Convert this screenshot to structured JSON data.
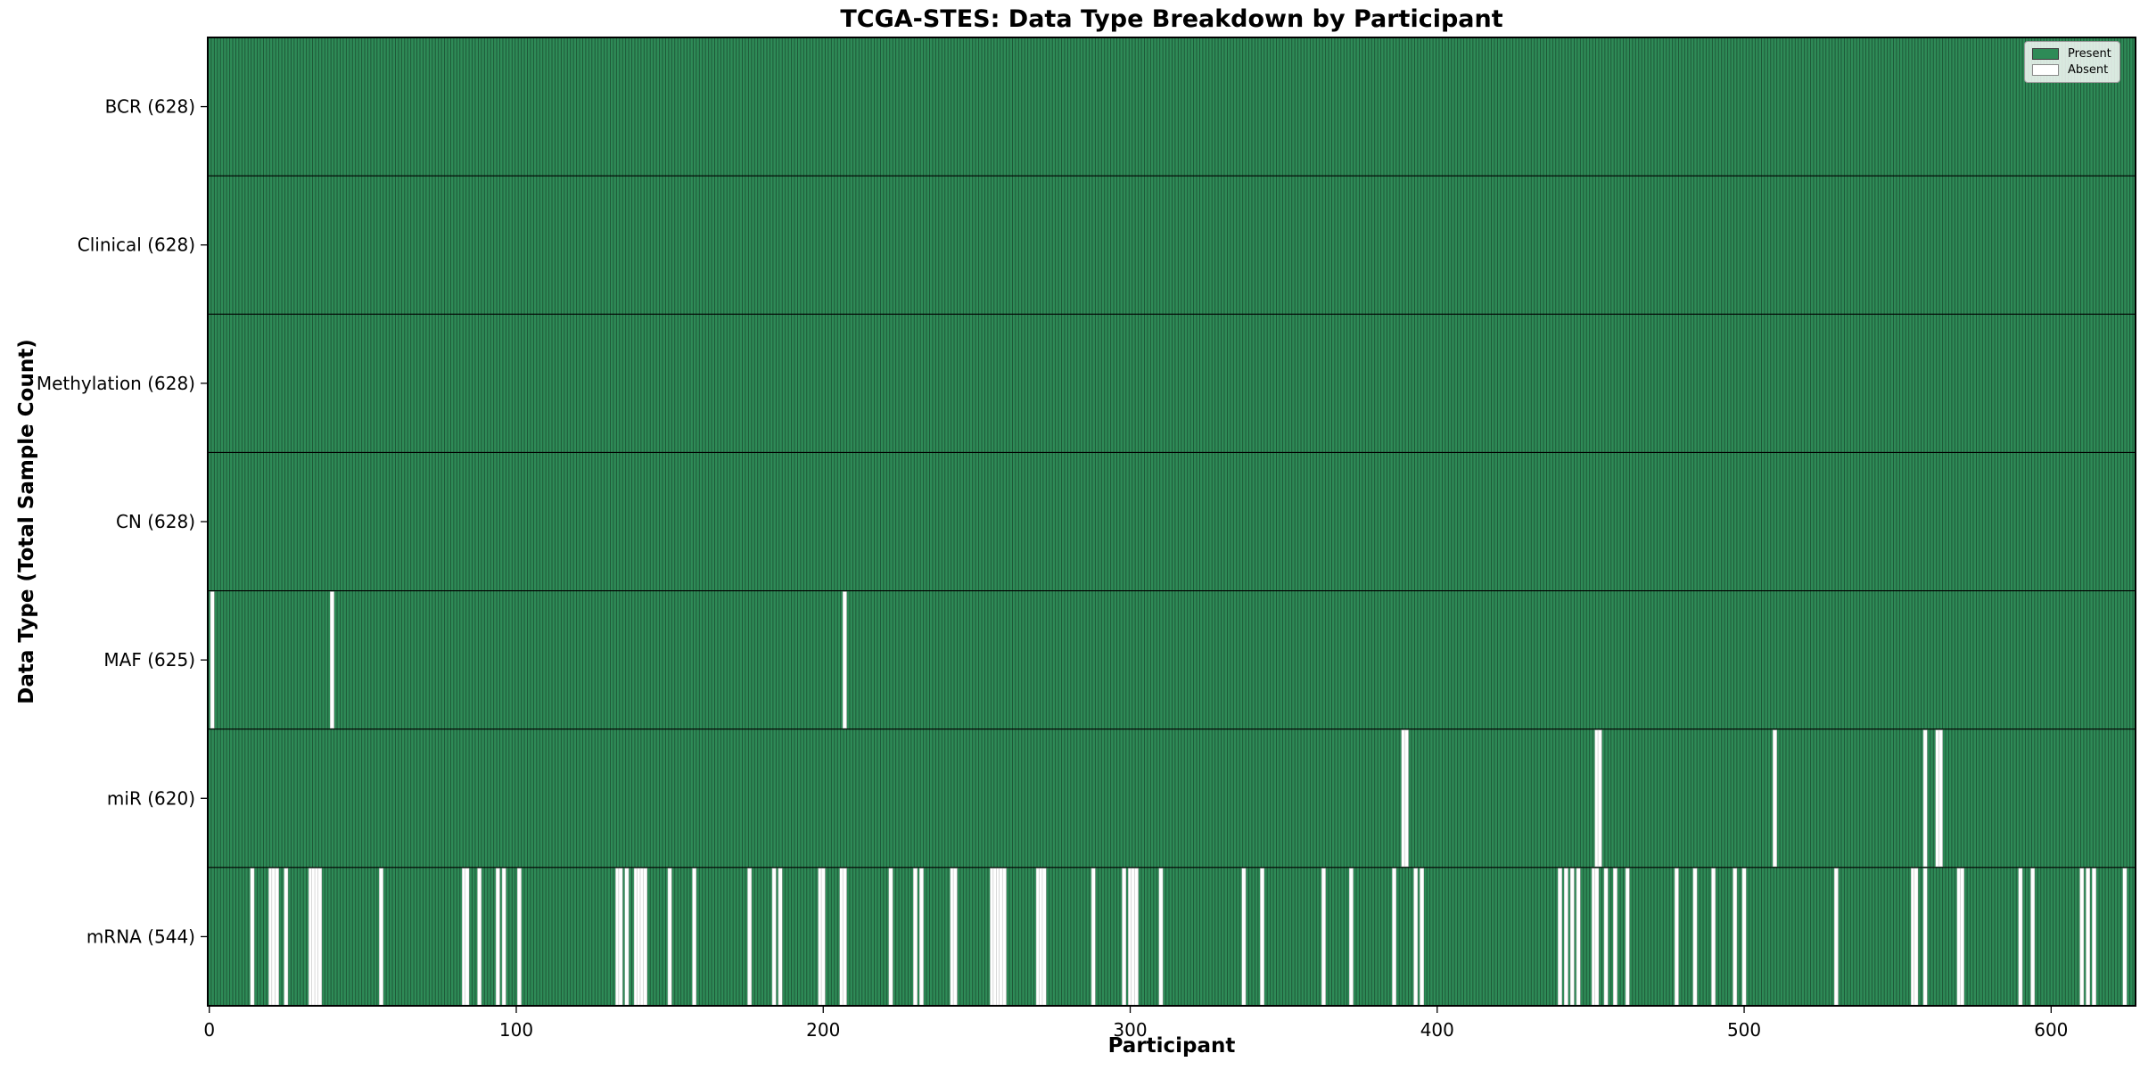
{
  "chart_data": {
    "type": "heatmap",
    "title": "TCGA-STES: Data Type Breakdown by Participant",
    "xlabel": "Participant",
    "ylabel": "Data Type (Total Sample Count)",
    "n_participants": 628,
    "x_range": [
      0,
      628
    ],
    "x_ticks": [
      0,
      100,
      200,
      300,
      400,
      500,
      600
    ],
    "grid": false,
    "legend_position": "upper right",
    "legend": [
      {
        "label": "Present",
        "color": "#2e8b57"
      },
      {
        "label": "Absent",
        "color": "#ffffff"
      }
    ],
    "colors": {
      "present": "#2e8b57",
      "absent": "#ffffff",
      "bar_edge": "#1c5234",
      "row_divider": "#000000",
      "axis": "#000000",
      "background": "#ffffff"
    },
    "rows": [
      {
        "label": "BCR (628)",
        "name": "BCR",
        "present_count": 628,
        "absent": []
      },
      {
        "label": "Clinical (628)",
        "name": "Clinical",
        "present_count": 628,
        "absent": []
      },
      {
        "label": "Methylation (628)",
        "name": "Methylation",
        "present_count": 628,
        "absent": []
      },
      {
        "label": "CN (628)",
        "name": "CN",
        "present_count": 628,
        "absent": []
      },
      {
        "label": "MAF (625)",
        "name": "MAF",
        "present_count": 625,
        "absent": [
          1,
          40,
          207
        ]
      },
      {
        "label": "miR (620)",
        "name": "miR",
        "present_count": 620,
        "absent": [
          389,
          390,
          452,
          453,
          510,
          559,
          563,
          564
        ]
      },
      {
        "label": "mRNA (544)",
        "name": "mRNA",
        "present_count": 544,
        "absent": [
          14,
          20,
          21,
          22,
          25,
          33,
          34,
          35,
          36,
          56,
          83,
          84,
          88,
          94,
          96,
          101,
          133,
          134,
          136,
          139,
          140,
          141,
          142,
          150,
          158,
          176,
          184,
          186,
          199,
          200,
          206,
          207,
          222,
          230,
          232,
          242,
          243,
          255,
          256,
          257,
          258,
          259,
          270,
          271,
          272,
          288,
          298,
          300,
          301,
          302,
          310,
          337,
          343,
          363,
          372,
          386,
          393,
          395,
          440,
          442,
          444,
          446,
          451,
          452,
          455,
          458,
          462,
          478,
          484,
          490,
          497,
          500,
          530,
          555,
          556,
          559,
          570,
          571,
          590,
          594,
          610,
          612,
          614,
          624
        ]
      }
    ]
  }
}
